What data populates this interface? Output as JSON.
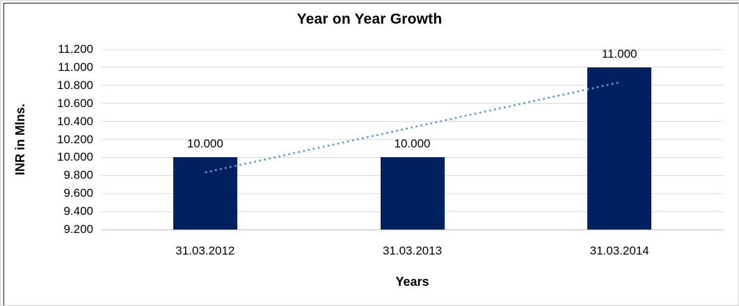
{
  "chart_data": {
    "type": "bar",
    "title": "Year on Year Growth",
    "xlabel": "Years",
    "ylabel": "INR in Mlns.",
    "categories": [
      "31.03.2012",
      "31.03.2013",
      "31.03.2014"
    ],
    "values": [
      10000,
      10000,
      11000
    ],
    "value_labels": [
      "10.000",
      "10.000",
      "11.000"
    ],
    "ylim": [
      9200,
      11200
    ],
    "ytick_step": 200,
    "ytick_labels": [
      "9.200",
      "9.400",
      "9.600",
      "9.800",
      "10.000",
      "10.200",
      "10.400",
      "10.600",
      "10.800",
      "11.000",
      "11.200"
    ],
    "grid": true,
    "legend": "none",
    "bar_color": "#002060",
    "trendline": {
      "type": "linear",
      "style": "dotted",
      "color": "#5b9bd5",
      "endpoints": [
        9833.33,
        10833.33
      ]
    }
  }
}
